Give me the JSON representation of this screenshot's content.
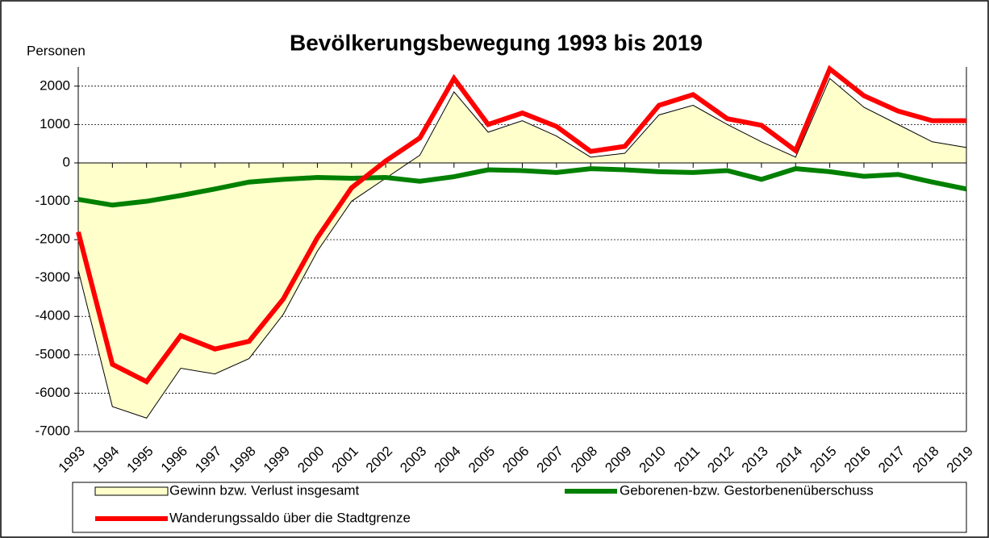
{
  "chart_data": {
    "type": "line",
    "title": "Bevölkerungsbewegung  1993 bis 2019",
    "y_label": "Personen",
    "categories": [
      "1993",
      "1994",
      "1995",
      "1996",
      "1997",
      "1998",
      "1999",
      "2000",
      "2001",
      "2002",
      "2003",
      "2004",
      "2005",
      "2006",
      "2007",
      "2008",
      "2009",
      "2010",
      "2011",
      "2012",
      "2013",
      "2014",
      "2015",
      "2016",
      "2017",
      "2018",
      "2019"
    ],
    "series": [
      {
        "name": "Gewinn bzw. Verlust insgesamt",
        "kind": "area",
        "color": "#ffffcc",
        "values": [
          -2800,
          -6350,
          -6650,
          -5350,
          -5500,
          -5100,
          -3950,
          -2300,
          -1000,
          -400,
          200,
          1850,
          800,
          1100,
          700,
          150,
          250,
          1250,
          1500,
          1000,
          550,
          150,
          2200,
          1450,
          1000,
          550,
          400
        ]
      },
      {
        "name": "Geborenen-bzw. Gestorbenenüberschuss",
        "kind": "line",
        "color": "#008000",
        "values": [
          -950,
          -1100,
          -1000,
          -850,
          -680,
          -500,
          -430,
          -380,
          -400,
          -380,
          -480,
          -360,
          -180,
          -200,
          -250,
          -150,
          -180,
          -230,
          -250,
          -200,
          -430,
          -150,
          -230,
          -350,
          -300,
          -500,
          -680
        ]
      },
      {
        "name": "Wanderungssaldo über die Stadtgrenze",
        "kind": "line",
        "color": "#ff0000",
        "values": [
          -1800,
          -5250,
          -5700,
          -4500,
          -4850,
          -4650,
          -3550,
          -1950,
          -650,
          50,
          650,
          2200,
          1000,
          1300,
          950,
          300,
          430,
          1500,
          1780,
          1150,
          980,
          320,
          2450,
          1750,
          1350,
          1100,
          1100
        ]
      }
    ],
    "ylim": [
      -7000,
      2500
    ],
    "yticks": [
      -7000,
      -6000,
      -5000,
      -4000,
      -3000,
      -2000,
      -1000,
      0,
      1000,
      2000
    ],
    "grid": true
  }
}
